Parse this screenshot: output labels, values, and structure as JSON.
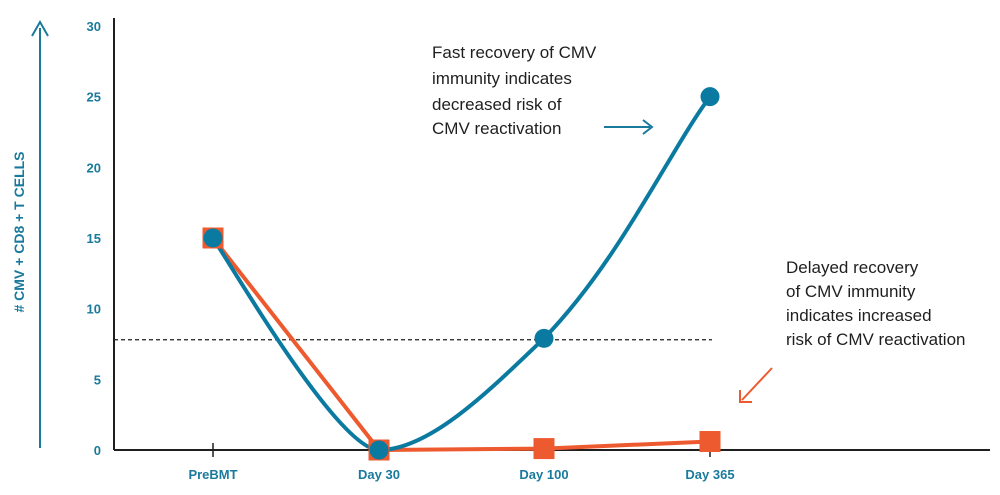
{
  "chart_data": {
    "type": "line",
    "title": "",
    "xlabel": "",
    "ylabel": "# CMV + CD8 + T CELLS",
    "categories": [
      "PreBMT",
      "Day 30",
      "Day 100",
      "Day 365"
    ],
    "ylim": [
      0,
      30
    ],
    "yticks": [
      "0",
      "5",
      "10",
      "15",
      "20",
      "25",
      "30"
    ],
    "threshold": 7.8,
    "series": [
      {
        "values": [
          15,
          0,
          7.9,
          25
        ],
        "color": "#0b7aa0",
        "marker": "circle"
      },
      {
        "values": [
          15,
          0,
          0.1,
          0.6
        ],
        "color": "#ee5a2f",
        "marker": "square"
      }
    ],
    "annotations": {
      "fast": [
        "Fast recovery of CMV",
        "immunity indicates",
        "decreased risk of",
        "CMV reactivation"
      ],
      "delayed": [
        "Delayed recovery",
        "of CMV immunity",
        "indicates increased",
        "risk of CMV reactivation"
      ]
    },
    "legend": "none",
    "grid": false
  }
}
